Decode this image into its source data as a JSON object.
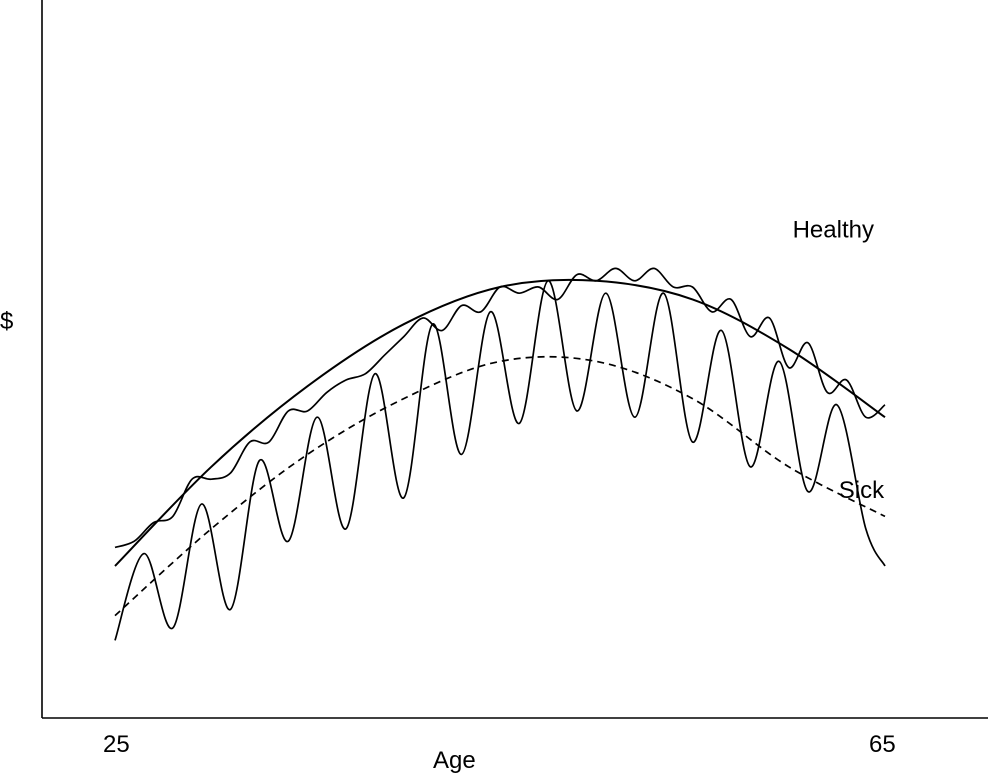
{
  "chart_data": {
    "type": "line",
    "xlabel": "Age",
    "ylabel": "$",
    "x_ticks": [
      "25",
      "65"
    ],
    "xlim": [
      25,
      65
    ],
    "ylim": [
      0,
      10
    ],
    "grid": false,
    "series": [
      {
        "name": "Healthy",
        "kind": "trend",
        "style": "solid",
        "x": [
          25,
          30,
          35,
          40,
          45,
          50,
          55,
          60,
          65
        ],
        "y": [
          2.0,
          3.6,
          4.9,
          5.9,
          6.5,
          6.6,
          6.3,
          5.5,
          4.4
        ]
      },
      {
        "name": "",
        "kind": "income",
        "style": "solid",
        "x": [
          25,
          26,
          27,
          28,
          29,
          30,
          31,
          32,
          33,
          34,
          35,
          36,
          37,
          38,
          39,
          40,
          41,
          42,
          43,
          44,
          45,
          46,
          47,
          48,
          49,
          50,
          51,
          52,
          53,
          54,
          55,
          56,
          57,
          58,
          59,
          60,
          61,
          62,
          63,
          64,
          65
        ],
        "y": [
          2.3,
          2.4,
          2.7,
          2.8,
          3.4,
          3.4,
          3.5,
          4.0,
          4.0,
          4.5,
          4.5,
          4.8,
          5.0,
          5.1,
          5.4,
          5.7,
          6.0,
          5.8,
          6.2,
          6.1,
          6.5,
          6.4,
          6.5,
          6.3,
          6.7,
          6.6,
          6.8,
          6.6,
          6.8,
          6.5,
          6.5,
          6.1,
          6.3,
          5.7,
          6.0,
          5.2,
          5.6,
          4.8,
          5.0,
          4.4,
          4.6
        ]
      },
      {
        "name": "Sick",
        "kind": "trend",
        "style": "dashed",
        "x": [
          25,
          30,
          35,
          40,
          45,
          50,
          55,
          60,
          65
        ],
        "y": [
          1.2,
          2.6,
          3.8,
          4.7,
          5.3,
          5.3,
          4.7,
          3.6,
          2.8
        ]
      },
      {
        "name": "",
        "kind": "income",
        "style": "solid",
        "x": [
          25,
          26.5,
          28,
          29.5,
          31,
          32.5,
          34,
          35.5,
          37,
          38.5,
          40,
          41.5,
          43,
          44.5,
          46,
          47.5,
          49,
          50.5,
          52,
          53.5,
          55,
          56.5,
          58,
          59.5,
          61,
          62.5,
          64,
          65
        ],
        "y": [
          0.8,
          2.2,
          1.0,
          3.0,
          1.3,
          3.7,
          2.4,
          4.4,
          2.6,
          5.1,
          3.1,
          5.9,
          3.8,
          6.1,
          4.3,
          6.6,
          4.5,
          6.4,
          4.4,
          6.4,
          4.0,
          5.8,
          3.6,
          5.3,
          3.2,
          4.6,
          2.6,
          2.0
        ]
      }
    ],
    "annotations": [
      {
        "text": "Healthy",
        "x": 60.2,
        "y": 7.3
      },
      {
        "text": "Sick",
        "x": 62.6,
        "y": 3.1
      }
    ]
  }
}
